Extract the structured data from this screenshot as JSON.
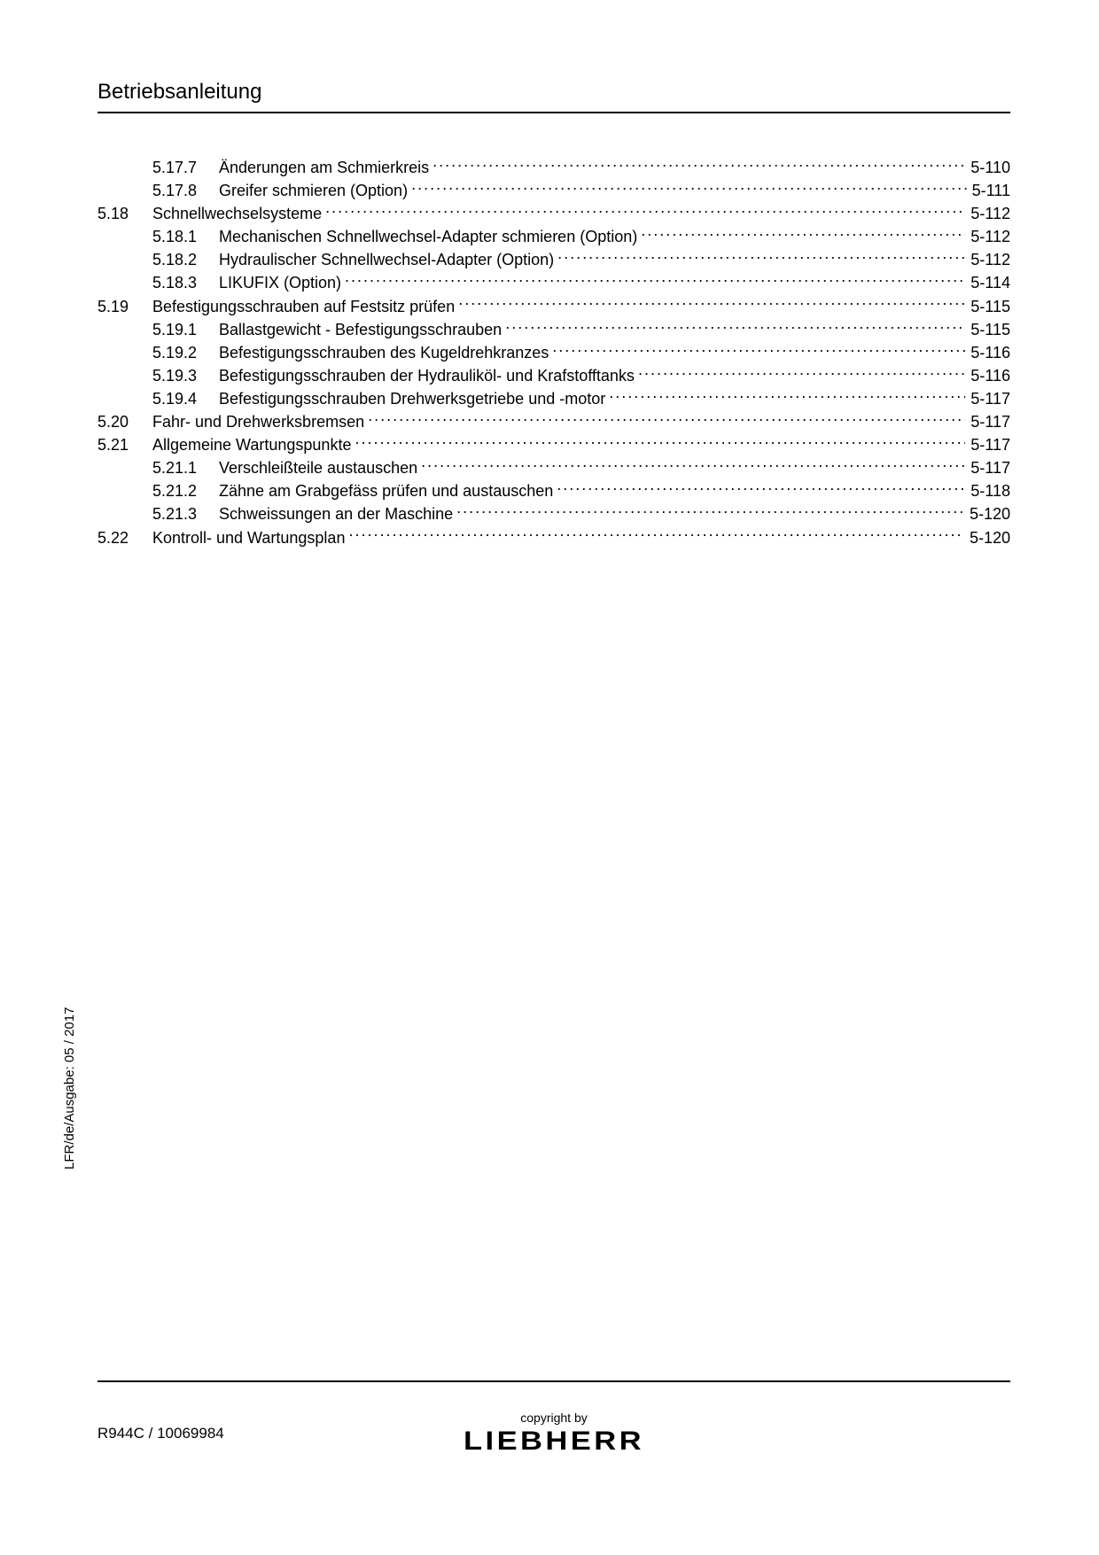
{
  "header": {
    "title": "Betriebsanleitung"
  },
  "toc": [
    {
      "section": "",
      "sub": "5.17.7",
      "title": "Änderungen am Schmierkreis",
      "page": "5-110"
    },
    {
      "section": "",
      "sub": "5.17.8",
      "title": "Greifer schmieren (Option)",
      "page": "5-111"
    },
    {
      "section": "5.18",
      "sub": "",
      "title": "Schnellwechselsysteme",
      "page": "5-112"
    },
    {
      "section": "",
      "sub": "5.18.1",
      "title": "Mechanischen Schnellwechsel-Adapter schmieren (Option)",
      "page": "5-112"
    },
    {
      "section": "",
      "sub": "5.18.2",
      "title": "Hydraulischer Schnellwechsel-Adapter (Option)",
      "page": "5-112"
    },
    {
      "section": "",
      "sub": "5.18.3",
      "title": "LIKUFIX (Option)",
      "page": "5-114"
    },
    {
      "section": "5.19",
      "sub": "",
      "title": "Befestigungsschrauben auf Festsitz prüfen",
      "page": "5-115"
    },
    {
      "section": "",
      "sub": "5.19.1",
      "title": "Ballastgewicht - Befestigungsschrauben",
      "page": "5-115"
    },
    {
      "section": "",
      "sub": "5.19.2",
      "title": "Befestigungsschrauben des Kugeldrehkranzes",
      "page": "5-116"
    },
    {
      "section": "",
      "sub": "5.19.3",
      "title": "Befestigungsschrauben der Hydrauliköl- und Krafstofftanks",
      "page": "5-116"
    },
    {
      "section": "",
      "sub": "5.19.4",
      "title": "Befestigungsschrauben Drehwerksgetriebe und -motor",
      "page": "5-117"
    },
    {
      "section": "5.20",
      "sub": "",
      "title": "Fahr- und Drehwerksbremsen",
      "page": "5-117"
    },
    {
      "section": "5.21",
      "sub": "",
      "title": "Allgemeine Wartungspunkte",
      "page": "5-117"
    },
    {
      "section": "",
      "sub": "5.21.1",
      "title": "Verschleißteile austauschen",
      "page": "5-117"
    },
    {
      "section": "",
      "sub": "5.21.2",
      "title": "Zähne am Grabgefäss prüfen und austauschen",
      "page": "5-118"
    },
    {
      "section": "",
      "sub": "5.21.3",
      "title": "Schweissungen an der Maschine",
      "page": "5-120"
    },
    {
      "section": "5.22",
      "sub": "",
      "title": "Kontroll- und Wartungsplan",
      "page": "5-120"
    }
  ],
  "side_text": "LFR/de/Ausgabe: 05 / 2017",
  "footer": {
    "left": "R944C / 10069984",
    "copyright": "copyright by",
    "brand": "LIEBHERR"
  }
}
